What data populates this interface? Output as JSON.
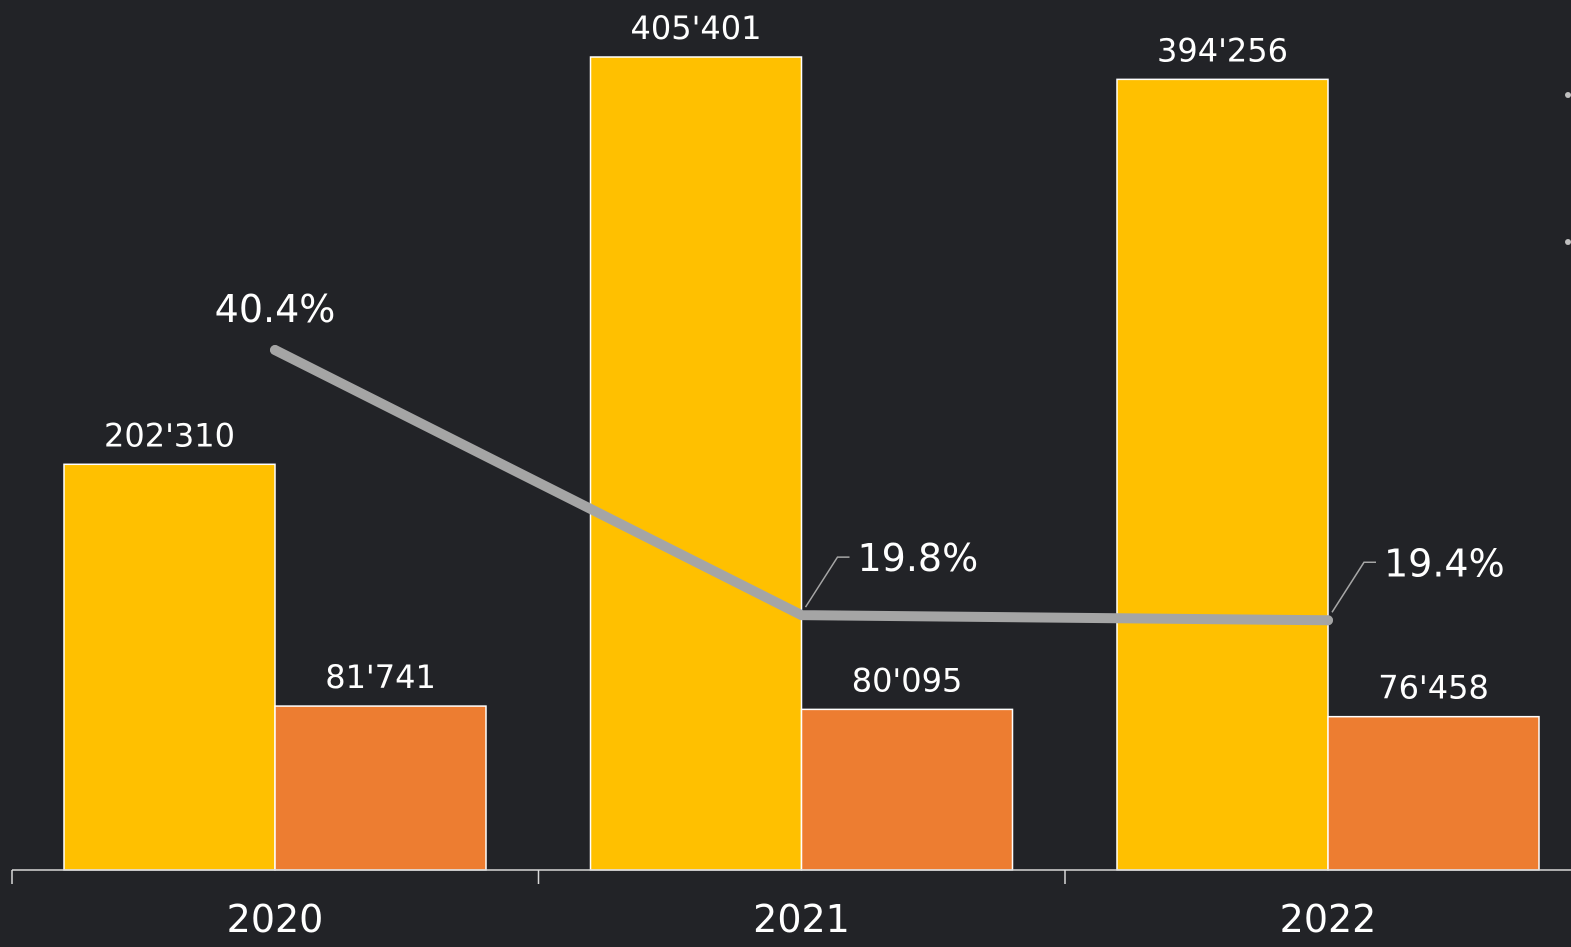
{
  "chart_data": {
    "type": "bar",
    "categories": [
      "2020",
      "2021",
      "2022"
    ],
    "series": [
      {
        "values": [
          202310,
          405401,
          394256
        ],
        "labels": [
          "202'310",
          "405'401",
          "394'256"
        ],
        "color": "#FFC000"
      },
      {
        "values": [
          81741,
          80095,
          76458
        ],
        "labels": [
          "81'741",
          "80'095",
          "76'458"
        ],
        "color": "#ED7D31"
      }
    ],
    "line_series": {
      "values": [
        40.4,
        19.8,
        19.4
      ],
      "labels": [
        "40.4%",
        "19.8%",
        "19.4%"
      ],
      "color": "#A5A5A5"
    },
    "bar_axis_range": [
      0,
      405401
    ],
    "line_axis_range": [
      0,
      40.4
    ],
    "grid": false,
    "legend": "none"
  }
}
